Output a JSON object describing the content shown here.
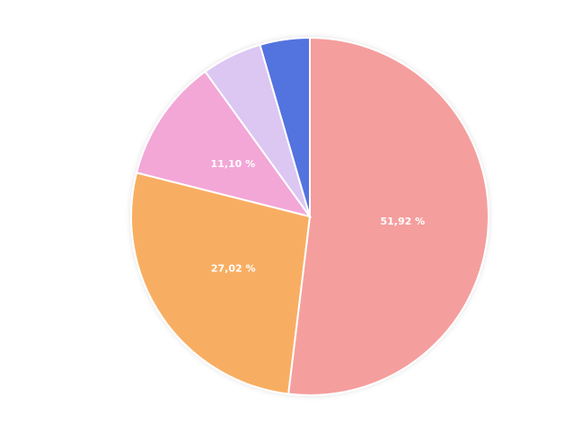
{
  "chart_data": {
    "type": "pie",
    "values": [
      51.92,
      27.02,
      11.1,
      5.46,
      4.5
    ],
    "value_labels": [
      "51,92 %",
      "27,02 %",
      "11,10 %",
      null,
      null
    ],
    "colors": [
      "#f59e9e",
      "#f8ae62",
      "#f2a7d7",
      "#dcc6f2",
      "#5373de"
    ]
  }
}
